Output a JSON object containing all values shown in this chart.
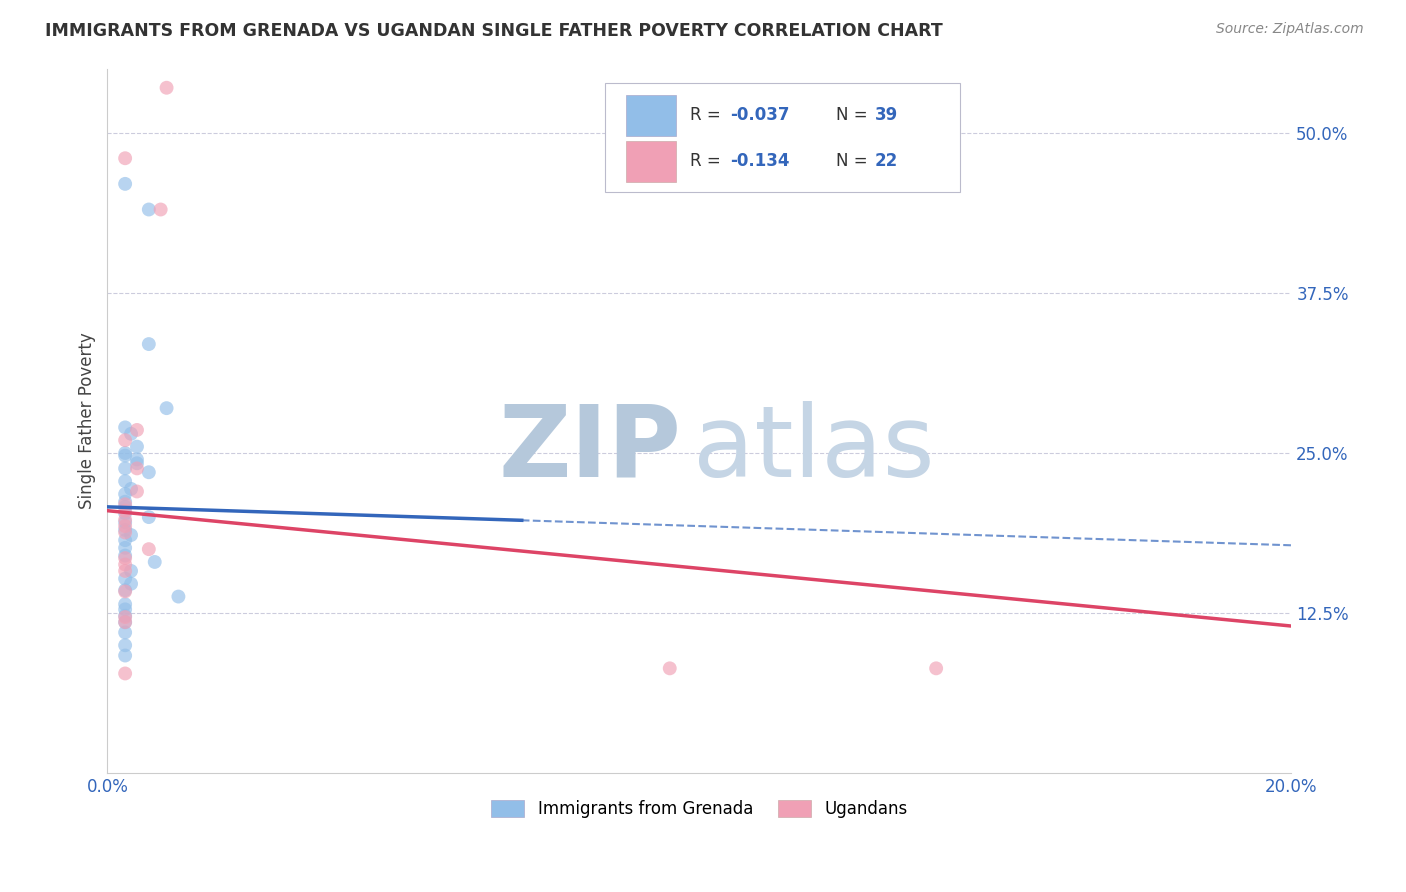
{
  "title": "IMMIGRANTS FROM GRENADA VS UGANDAN SINGLE FATHER POVERTY CORRELATION CHART",
  "source": "Source: ZipAtlas.com",
  "ylabel": "Single Father Poverty",
  "ytick_labels": [
    "50.0%",
    "37.5%",
    "25.0%",
    "12.5%"
  ],
  "ytick_values": [
    0.5,
    0.375,
    0.25,
    0.125
  ],
  "xlim": [
    0.0,
    0.2
  ],
  "ylim": [
    0.0,
    0.55
  ],
  "legend_blue_R": "-0.037",
  "legend_blue_N": "39",
  "legend_pink_R": "-0.134",
  "legend_pink_N": "22",
  "legend_label_blue": "Immigrants from Grenada",
  "legend_label_pink": "Ugandans",
  "blue_color": "#92BEE8",
  "pink_color": "#F0A0B5",
  "blue_line_color": "#3366BB",
  "pink_line_color": "#DD4466",
  "watermark_zip_color": "#B8CCDD",
  "watermark_atlas_color": "#C8D8E8",
  "background_color": "#FFFFFF",
  "grid_color": "#CCCCDD",
  "marker_size": 100,
  "blue_x": [
    0.003,
    0.007,
    0.007,
    0.01,
    0.003,
    0.004,
    0.005,
    0.003,
    0.003,
    0.005,
    0.005,
    0.003,
    0.007,
    0.003,
    0.004,
    0.003,
    0.003,
    0.003,
    0.003,
    0.007,
    0.003,
    0.003,
    0.004,
    0.003,
    0.003,
    0.003,
    0.008,
    0.004,
    0.003,
    0.004,
    0.003,
    0.012,
    0.003,
    0.003,
    0.003,
    0.003,
    0.003,
    0.003,
    0.003
  ],
  "blue_y": [
    0.46,
    0.44,
    0.335,
    0.285,
    0.27,
    0.265,
    0.255,
    0.25,
    0.248,
    0.245,
    0.242,
    0.238,
    0.235,
    0.228,
    0.222,
    0.218,
    0.212,
    0.208,
    0.203,
    0.2,
    0.196,
    0.19,
    0.186,
    0.182,
    0.176,
    0.17,
    0.165,
    0.158,
    0.152,
    0.148,
    0.143,
    0.138,
    0.132,
    0.128,
    0.123,
    0.118,
    0.11,
    0.1,
    0.092
  ],
  "pink_x": [
    0.01,
    0.003,
    0.009,
    0.005,
    0.003,
    0.005,
    0.005,
    0.003,
    0.003,
    0.003,
    0.003,
    0.003,
    0.007,
    0.003,
    0.003,
    0.003,
    0.003,
    0.003,
    0.003,
    0.003,
    0.095,
    0.14
  ],
  "pink_y": [
    0.535,
    0.48,
    0.44,
    0.268,
    0.26,
    0.238,
    0.22,
    0.21,
    0.205,
    0.198,
    0.193,
    0.188,
    0.175,
    0.168,
    0.163,
    0.158,
    0.142,
    0.122,
    0.118,
    0.078,
    0.082,
    0.082
  ],
  "blue_line_x": [
    0.0,
    0.2
  ],
  "blue_line_y": [
    0.208,
    0.178
  ],
  "pink_line_x": [
    0.0,
    0.2
  ],
  "pink_line_y": [
    0.205,
    0.115
  ]
}
